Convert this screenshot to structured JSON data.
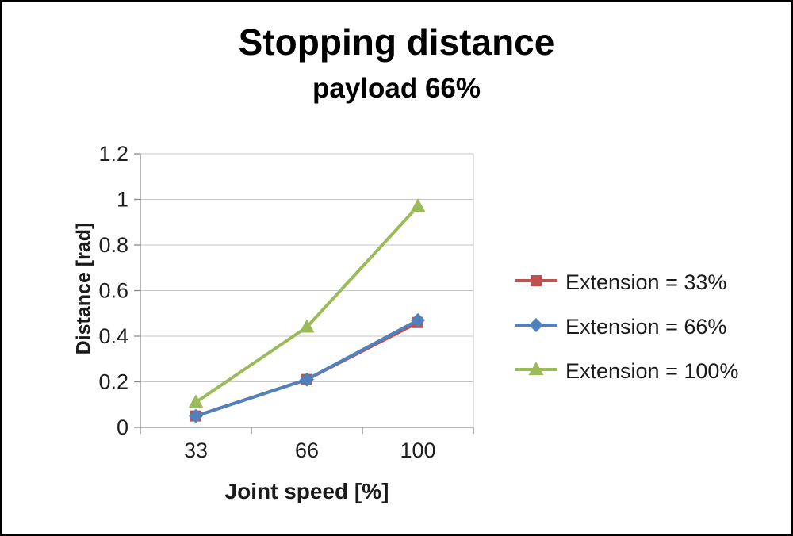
{
  "chart_data": {
    "type": "line",
    "title": "Stopping distance",
    "subtitle": "payload 66%",
    "xlabel": "Joint speed [%]",
    "ylabel": "Distance [rad]",
    "categories": [
      "33",
      "66",
      "100"
    ],
    "ylim": [
      0,
      1.2
    ],
    "yticks": [
      "0",
      "0.2",
      "0.4",
      "0.6",
      "0.8",
      "1",
      "1.2"
    ],
    "grid": true,
    "legend_position": "right",
    "colors": {
      "gridline": "#c6c6c6",
      "axis": "#8c8c8c",
      "tick_label": "#1f1f1f"
    },
    "series": [
      {
        "name": "Extension = 33%",
        "color": "#c0504d",
        "marker": "square",
        "values": [
          0.05,
          0.21,
          0.46
        ]
      },
      {
        "name": "Extension = 66%",
        "color": "#4f81bd",
        "marker": "diamond",
        "values": [
          0.05,
          0.21,
          0.47
        ]
      },
      {
        "name": "Extension = 100%",
        "color": "#9bbb59",
        "marker": "triangle",
        "values": [
          0.11,
          0.44,
          0.97
        ]
      }
    ]
  }
}
